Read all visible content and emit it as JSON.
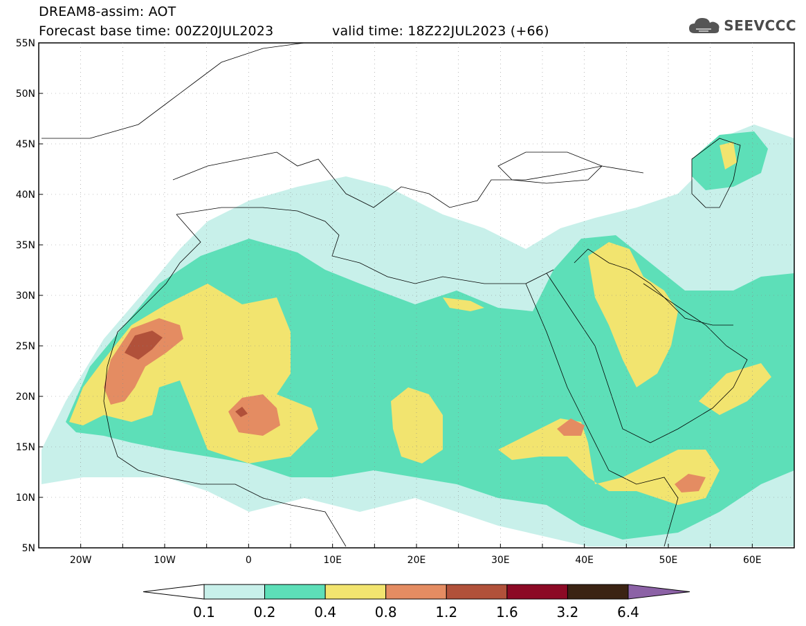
{
  "header": {
    "title_line1": "DREAM8-assim: AOT",
    "title_line2": "Forecast base time: 00Z20JUL2023",
    "valid_time": "valid time: 18Z22JUL2023 (+66)"
  },
  "logo": {
    "text": "SEEVCCC",
    "icon": "cloud-icon"
  },
  "map": {
    "projection": "lat-lon",
    "lon_range": [
      -25,
      65
    ],
    "lat_range": [
      5,
      55
    ],
    "grid": "dotted",
    "lat_labels": [
      "55N",
      "50N",
      "45N",
      "40N",
      "35N",
      "30N",
      "25N",
      "20N",
      "15N",
      "10N",
      "5N"
    ],
    "lon_labels": [
      "20W",
      "10W",
      "0",
      "10E",
      "20E",
      "30E",
      "40E",
      "50E",
      "60E"
    ]
  },
  "legend": {
    "labels": [
      "0.1",
      "0.2",
      "0.4",
      "0.8",
      "1.2",
      "1.6",
      "3.2",
      "6.4"
    ],
    "colors": [
      "#ffffff",
      "#c8f0ea",
      "#5ddfb8",
      "#f2e46f",
      "#e48c62",
      "#b1513a",
      "#8c0a25",
      "#3b2313",
      "#8c62a6"
    ]
  }
}
